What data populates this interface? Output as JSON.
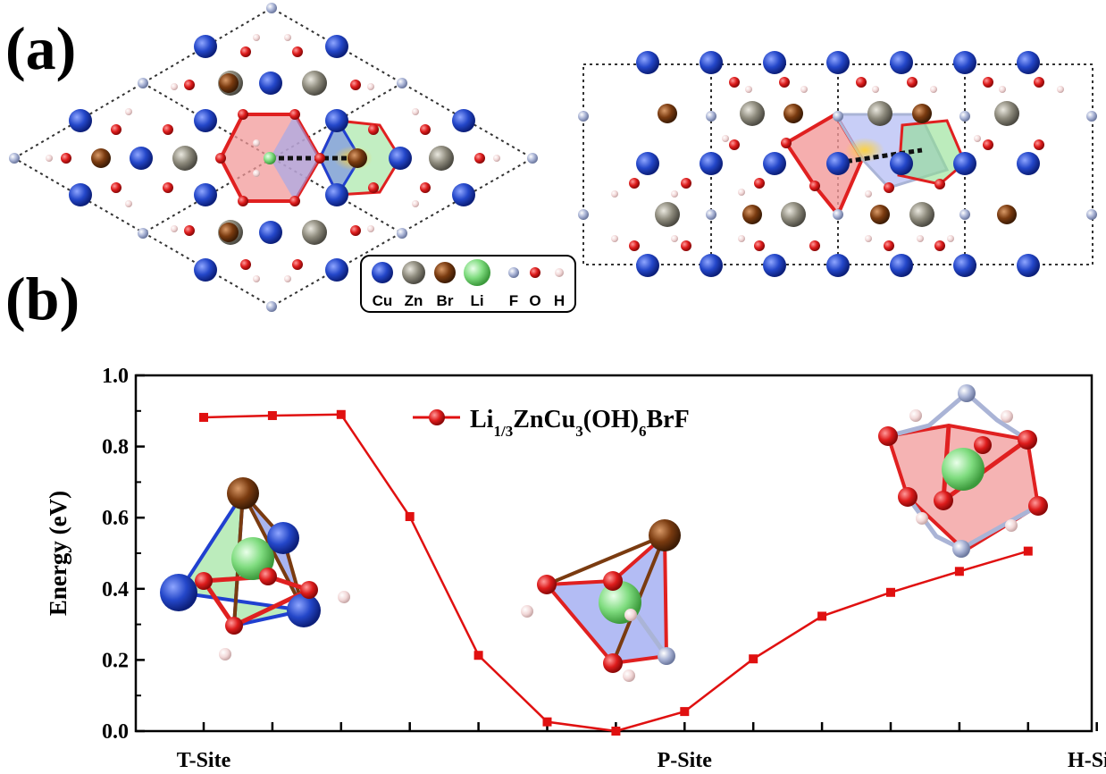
{
  "panels": {
    "a": "(a)",
    "b": "(b)"
  },
  "structure_legend": {
    "elements": [
      {
        "symbol": "Cu",
        "color": "#1e3fbf"
      },
      {
        "symbol": "Zn",
        "color": "#8d8a7c"
      },
      {
        "symbol": "Br",
        "color": "#7a3b10"
      },
      {
        "symbol": "Li",
        "color": "#7fdc7f"
      },
      {
        "symbol": "F",
        "color": "#aab4d6"
      },
      {
        "symbol": "O",
        "color": "#dd1c1c"
      },
      {
        "symbol": "H",
        "color": "#f2d8d8"
      }
    ]
  },
  "chart_data": {
    "type": "line",
    "xlabel": "",
    "ylabel": "Energy (eV)",
    "ylim": [
      0.0,
      1.0
    ],
    "yticks": [
      "0.0",
      "0.2",
      "0.4",
      "0.6",
      "0.8",
      "1.0"
    ],
    "xtick_count": 14,
    "x_labels": [
      {
        "label": "T-Site",
        "tick": 0
      },
      {
        "label": "P-Site",
        "tick": 7
      },
      {
        "label": "H-Site",
        "tick": 13
      }
    ],
    "series": [
      {
        "name": "Li1/3ZnCu3(OH)6BrF",
        "color": "#e01010",
        "points": [
          [
            0.0,
            0.882
          ],
          [
            1.0,
            0.887
          ],
          [
            2.0,
            0.89
          ],
          [
            3.0,
            0.603
          ],
          [
            4.0,
            0.213
          ],
          [
            5.0,
            0.026
          ],
          [
            6.0,
            0.0
          ],
          [
            7.0,
            0.055
          ],
          [
            8.0,
            0.203
          ],
          [
            9.0,
            0.323
          ],
          [
            10.0,
            0.39
          ],
          [
            11.0,
            0.449
          ],
          [
            12.0,
            0.506
          ]
        ]
      }
    ],
    "legend_position": "top-center"
  }
}
